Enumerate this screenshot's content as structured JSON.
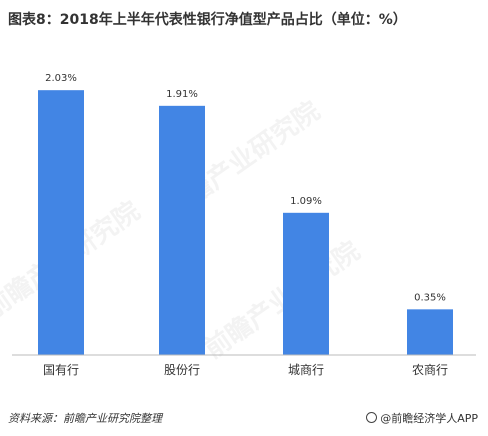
{
  "title": "图表8：2018年上半年代表性银行净值型产品占比（单位：%）",
  "source": "资料来源：前瞻产业研究院整理",
  "brand": "@前瞻经济学人APP",
  "watermark_text": "前瞻产业研究院",
  "colors": {
    "bar": "#4285e4",
    "text": "#333333",
    "axis": "#bbbbbb"
  },
  "chart_data": {
    "type": "bar",
    "categories": [
      "国有行",
      "股份行",
      "城商行",
      "农商行"
    ],
    "values": [
      2.03,
      1.91,
      1.09,
      0.35
    ],
    "value_labels": [
      "2.03%",
      "1.91%",
      "1.09%",
      "0.35%"
    ],
    "title": "图表8：2018年上半年代表性银行净值型产品占比（单位：%）",
    "ylim": [
      0,
      2.2
    ],
    "grid": false,
    "legend": "none"
  }
}
